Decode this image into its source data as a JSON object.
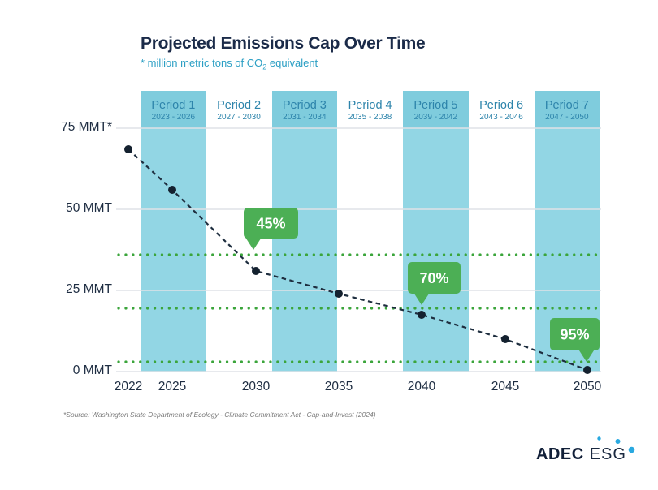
{
  "header": {
    "title": "Projected Emissions Cap Over Time",
    "subtitle_pre": "* million metric tons of CO",
    "subtitle_sub": "2",
    "subtitle_post": " equivalent"
  },
  "footer": {
    "source": "*Source: Washington State Department of Ecology - Climate Commitment Act - Cap-and-Invest (2024)",
    "logo_primary": "ADEC",
    "logo_secondary": "ESG"
  },
  "chart_data": {
    "type": "line",
    "title": "Projected Emissions Cap Over Time",
    "units": "million metric tons of CO2 equivalent",
    "line_style": "dashed",
    "grid": "horizontal",
    "x": [
      2022,
      2025,
      2030,
      2035,
      2040,
      2045,
      2050
    ],
    "values_mmt": [
      68.5,
      56,
      31,
      24,
      17.5,
      10,
      0.5
    ],
    "ylim": [
      0,
      75
    ],
    "y_axis_ticks": [
      {
        "label": "75 MMT*",
        "value": 75
      },
      {
        "label": "50 MMT",
        "value": 50
      },
      {
        "label": "25 MMT",
        "value": 25
      },
      {
        "label": "0 MMT",
        "value": 0
      }
    ],
    "periods": [
      {
        "name": "Period 1",
        "range": "2023 - 2026",
        "shaded": true
      },
      {
        "name": "Period 2",
        "range": "2027 - 2030",
        "shaded": false
      },
      {
        "name": "Period 3",
        "range": "2031 - 2034",
        "shaded": true
      },
      {
        "name": "Period 4",
        "range": "2035 - 2038",
        "shaded": false
      },
      {
        "name": "Period 5",
        "range": "2039 - 2042",
        "shaded": true
      },
      {
        "name": "Period 6",
        "range": "2043 - 2046",
        "shaded": false
      },
      {
        "name": "Period 7",
        "range": "2047 - 2050",
        "shaded": true
      }
    ],
    "reduction_targets": [
      {
        "label": "45%",
        "value_mmt": 36,
        "anchor_year": 2030
      },
      {
        "label": "70%",
        "value_mmt": 19.5,
        "anchor_year": 2040
      },
      {
        "label": "95%",
        "value_mmt": 3,
        "anchor_year": 2050
      }
    ],
    "colors": {
      "band": "#92d6e4",
      "band_header": "#7fccdd",
      "period_text": "#2d84ab",
      "line": "#1e2e3f",
      "point": "#14212f",
      "target_dots": "#3ba53b",
      "badge": "#4caf55",
      "gridline": "#dfe2e7",
      "axis_text": "#1e2d42",
      "accent_teal": "#2b9fc4",
      "navy": "#1b2b49",
      "logo_dots": "#29a9e0"
    }
  }
}
